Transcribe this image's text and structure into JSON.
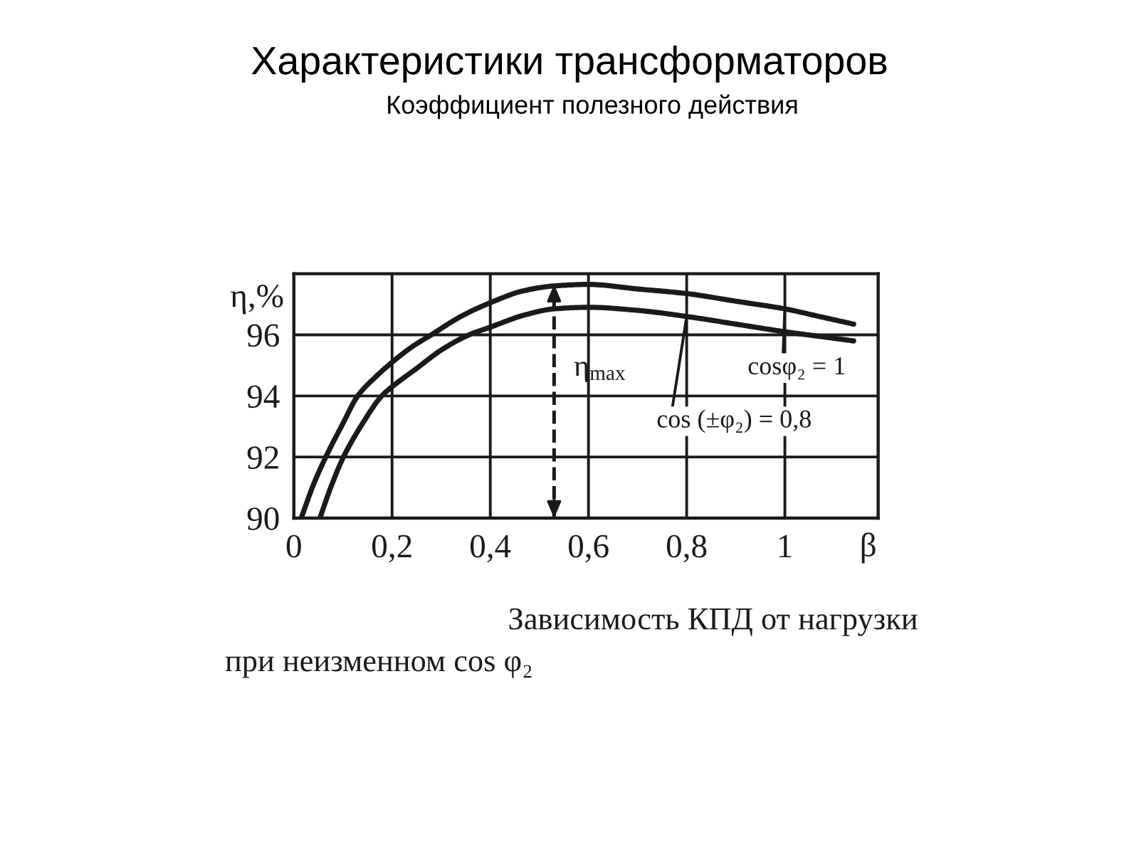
{
  "chart_data": {
    "type": "line",
    "title": "Характеристики трансформаторов",
    "subtitle": "Коэффициент полезного действия",
    "xlabel": "β",
    "ylabel": "η,%",
    "xlim": [
      0,
      1.19
    ],
    "ylim": [
      90,
      98
    ],
    "xticks": [
      0,
      {
        "value": 0.2,
        "label": "0,2"
      },
      {
        "value": 0.4,
        "label": "0,4"
      },
      {
        "value": 0.6,
        "label": "0,6"
      },
      {
        "value": 0.8,
        "label": "0,8"
      },
      1
    ],
    "yticks": [
      90,
      92,
      94,
      96
    ],
    "grid": true,
    "line_style": "solid",
    "series": [
      {
        "name": "cosφ₂ = 1",
        "color": "#1a1a1a",
        "x": [
          0.015,
          0.04,
          0.065,
          0.1,
          0.13,
          0.165,
          0.2,
          0.24,
          0.28,
          0.34,
          0.4,
          0.47,
          0.53,
          0.6,
          0.7,
          0.8,
          0.9,
          1.0,
          1.07,
          1.14
        ],
        "values": [
          90,
          91.1,
          92,
          93.1,
          94,
          94.6,
          95.1,
          95.6,
          96,
          96.6,
          97.05,
          97.45,
          97.6,
          97.65,
          97.5,
          97.35,
          97.1,
          96.85,
          96.6,
          96.35
        ]
      },
      {
        "name": "cos (±φ₂) = 0,8",
        "color": "#1a1a1a",
        "x": [
          0.053,
          0.075,
          0.101,
          0.14,
          0.179,
          0.2,
          0.25,
          0.3,
          0.357,
          0.4,
          0.47,
          0.53,
          0.6,
          0.7,
          0.8,
          0.9,
          1.0,
          1.07,
          1.14
        ],
        "values": [
          90,
          91,
          92,
          93.1,
          94,
          94.3,
          94.9,
          95.5,
          96,
          96.25,
          96.65,
          96.85,
          96.9,
          96.8,
          96.6,
          96.35,
          96.1,
          95.95,
          95.8
        ]
      }
    ],
    "ref_lines": [
      {
        "axis": "x",
        "value": 0.53,
        "label": "η$_{max}$",
        "line_style": "dashed",
        "color": "#1a1a1a"
      }
    ],
    "annotations": [
      "Зависимость КПД от нагрузки",
      "при неизменном cos φ₂"
    ]
  }
}
